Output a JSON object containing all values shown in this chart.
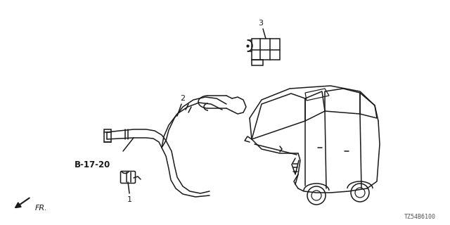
{
  "bg_color": "#ffffff",
  "line_color": "#1a1a1a",
  "diagram_id": "TZ54B6100",
  "label1": "1",
  "label2": "2",
  "label3": "3",
  "ref_label": "B-17-20",
  "direction_label": "FR.",
  "fig_width": 6.4,
  "fig_height": 3.2,
  "dpi": 100
}
